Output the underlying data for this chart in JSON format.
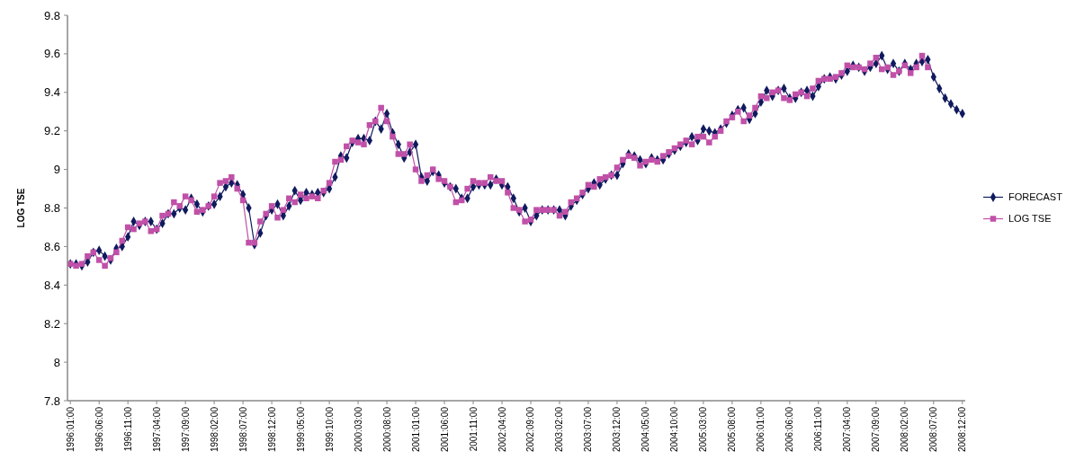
{
  "chart_data": {
    "type": "line",
    "ylabel": "LOG TSE",
    "categories": [
      "1996:01:00",
      null,
      null,
      null,
      null,
      "1996:06:00",
      null,
      null,
      null,
      null,
      "1996:11:00",
      null,
      null,
      null,
      null,
      "1997:04:00",
      null,
      null,
      null,
      null,
      "1997:09:00",
      null,
      null,
      null,
      null,
      "1998:02:00",
      null,
      null,
      null,
      null,
      "1998:07:00",
      null,
      null,
      null,
      null,
      "1998:12:00",
      null,
      null,
      null,
      null,
      "1999:05:00",
      null,
      null,
      null,
      null,
      "1999:10:00",
      null,
      null,
      null,
      null,
      "2000:03:00",
      null,
      null,
      null,
      null,
      "2000:08:00",
      null,
      null,
      null,
      null,
      "2001:01:00",
      null,
      null,
      null,
      null,
      "2001:06:00",
      null,
      null,
      null,
      null,
      "2001:11:00",
      null,
      null,
      null,
      null,
      "2002:04:00",
      null,
      null,
      null,
      null,
      "2002:09:00",
      null,
      null,
      null,
      null,
      "2003:02:00",
      null,
      null,
      null,
      null,
      "2003:07:00",
      null,
      null,
      null,
      null,
      "2003:12:00",
      null,
      null,
      null,
      null,
      "2004:05:00",
      null,
      null,
      null,
      null,
      "2004:10:00",
      null,
      null,
      null,
      null,
      "2005:03:00",
      null,
      null,
      null,
      null,
      "2005:08:00",
      null,
      null,
      null,
      null,
      "2006:01:00",
      null,
      null,
      null,
      null,
      "2006:06:00",
      null,
      null,
      null,
      null,
      "2006:11:00",
      null,
      null,
      null,
      null,
      "2007:04:00",
      null,
      null,
      null,
      null,
      "2007:09:00",
      null,
      null,
      null,
      null,
      "2008:02:00",
      null,
      null,
      null,
      null,
      "2008:07:00",
      null,
      null,
      null,
      null,
      "2008:12:00"
    ],
    "series": [
      {
        "name": "FORECAST",
        "color": "#101a5e",
        "marker": "diamond",
        "values": [
          8.51,
          8.51,
          8.5,
          8.52,
          8.57,
          8.58,
          8.55,
          8.53,
          8.59,
          8.6,
          8.65,
          8.73,
          8.71,
          8.73,
          8.73,
          8.69,
          8.72,
          8.77,
          8.77,
          8.8,
          8.79,
          8.85,
          8.82,
          8.78,
          8.81,
          8.82,
          8.86,
          8.91,
          8.93,
          8.92,
          8.87,
          8.8,
          8.61,
          8.67,
          8.76,
          8.79,
          8.82,
          8.76,
          8.81,
          8.89,
          8.84,
          8.88,
          8.87,
          8.88,
          8.88,
          8.9,
          8.96,
          9.07,
          9.06,
          9.14,
          9.16,
          9.16,
          9.15,
          9.25,
          9.21,
          9.29,
          9.19,
          9.13,
          9.06,
          9.09,
          9.13,
          8.96,
          8.94,
          8.99,
          8.97,
          8.93,
          8.91,
          8.9,
          8.85,
          8.85,
          8.91,
          8.92,
          8.92,
          8.92,
          8.95,
          8.92,
          8.91,
          8.85,
          8.78,
          8.8,
          8.73,
          8.76,
          8.79,
          8.79,
          8.79,
          8.79,
          8.76,
          8.81,
          8.84,
          8.87,
          8.9,
          8.93,
          8.92,
          8.95,
          8.97,
          8.97,
          9.03,
          9.08,
          9.07,
          9.05,
          9.03,
          9.06,
          9.05,
          9.05,
          9.08,
          9.1,
          9.12,
          9.14,
          9.17,
          9.15,
          9.21,
          9.2,
          9.19,
          9.21,
          9.24,
          9.28,
          9.31,
          9.32,
          9.26,
          9.29,
          9.35,
          9.41,
          9.38,
          9.41,
          9.42,
          9.37,
          9.37,
          9.4,
          9.41,
          9.38,
          9.43,
          9.47,
          9.48,
          9.47,
          9.49,
          9.51,
          9.54,
          9.53,
          9.51,
          9.53,
          9.55,
          9.59,
          9.52,
          9.55,
          9.51,
          9.55,
          9.52,
          9.55,
          9.56,
          9.57,
          9.48,
          9.42,
          9.37,
          9.34,
          9.31,
          9.29
        ]
      },
      {
        "name": "LOG TSE",
        "color": "#c050a8",
        "marker": "square",
        "values": [
          8.51,
          8.5,
          8.51,
          8.55,
          8.57,
          8.53,
          8.5,
          8.54,
          8.57,
          8.63,
          8.7,
          8.69,
          8.72,
          8.73,
          8.68,
          8.69,
          8.76,
          8.77,
          8.83,
          8.81,
          8.86,
          8.84,
          8.78,
          8.79,
          8.81,
          8.86,
          8.93,
          8.94,
          8.96,
          8.9,
          8.84,
          8.62,
          8.62,
          8.73,
          8.77,
          8.81,
          8.75,
          8.79,
          8.85,
          8.83,
          8.87,
          8.85,
          8.86,
          8.85,
          8.89,
          8.93,
          9.04,
          9.05,
          9.12,
          9.15,
          9.14,
          9.13,
          9.23,
          9.25,
          9.32,
          9.25,
          9.17,
          9.08,
          9.08,
          9.13,
          9.0,
          8.94,
          8.97,
          9.0,
          8.95,
          8.94,
          8.91,
          8.83,
          8.84,
          8.9,
          8.94,
          8.93,
          8.93,
          8.96,
          8.94,
          8.94,
          8.88,
          8.8,
          8.79,
          8.73,
          8.74,
          8.79,
          8.79,
          8.79,
          8.79,
          8.76,
          8.78,
          8.83,
          8.85,
          8.88,
          8.92,
          8.91,
          8.95,
          8.96,
          8.97,
          9.01,
          9.05,
          9.07,
          9.06,
          9.02,
          9.04,
          9.05,
          9.04,
          9.07,
          9.09,
          9.11,
          9.13,
          9.15,
          9.13,
          9.17,
          9.17,
          9.14,
          9.17,
          9.2,
          9.25,
          9.27,
          9.3,
          9.25,
          9.28,
          9.32,
          9.38,
          9.37,
          9.4,
          9.41,
          9.37,
          9.36,
          9.39,
          9.4,
          9.38,
          9.42,
          9.46,
          9.47,
          9.47,
          9.48,
          9.5,
          9.54,
          9.53,
          9.53,
          9.52,
          9.55,
          9.58,
          9.52,
          9.53,
          9.49,
          9.51,
          9.54,
          9.5,
          9.53,
          9.59,
          9.53,
          null,
          null,
          null,
          null,
          null,
          null
        ]
      }
    ],
    "ylim": [
      7.8,
      9.8
    ],
    "yticks": [
      7.8,
      8,
      8.2,
      8.4,
      8.6,
      8.8,
      9,
      9.2,
      9.4,
      9.6,
      9.8
    ],
    "legend": "right"
  }
}
